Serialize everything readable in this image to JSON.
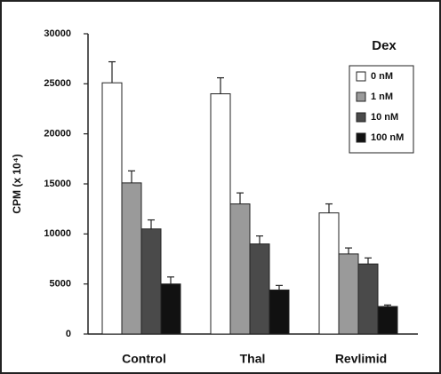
{
  "chart_data": {
    "type": "bar",
    "categories": [
      "Control",
      "Thal",
      "Revlimid"
    ],
    "y_label": "CPM (x 10⁴)",
    "legend_title": "Dex",
    "ylim": [
      0,
      30000
    ],
    "yticks": [
      0,
      5000,
      10000,
      15000,
      20000,
      25000,
      30000
    ],
    "series": [
      {
        "name": "0 nM",
        "color": "#ffffff",
        "values": [
          25100,
          24000,
          12100
        ],
        "errors": [
          2100,
          1600,
          900
        ]
      },
      {
        "name": "1 nM",
        "color": "#9a9a9a",
        "values": [
          15100,
          13000,
          8000
        ],
        "errors": [
          1200,
          1100,
          600
        ]
      },
      {
        "name": "10 nM",
        "color": "#4a4a4a",
        "values": [
          10500,
          9000,
          7000
        ],
        "errors": [
          900,
          800,
          600
        ]
      },
      {
        "name": "100 nM",
        "color": "#111111",
        "values": [
          5000,
          4400,
          2750
        ],
        "errors": [
          700,
          450,
          150
        ]
      }
    ]
  }
}
